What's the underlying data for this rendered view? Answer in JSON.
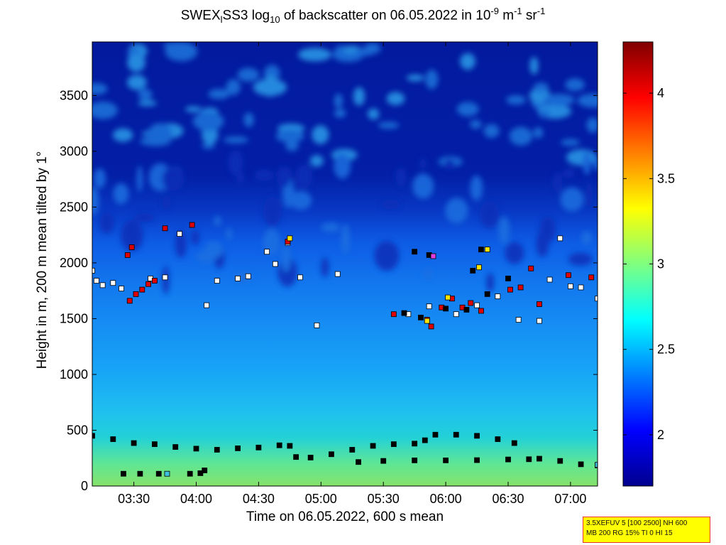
{
  "title": {
    "prefix": "SWEX",
    "sub1": "l",
    "mid1": "SS3 log",
    "sub2": "10",
    "mid2": " of backscatter on 06.05.2022 in 10",
    "sup1": "-9",
    "mid3": " m",
    "sup2": "-1",
    "mid4": " sr",
    "sup3": "-1"
  },
  "info_box": {
    "line1": "3.5XEFUV 5 [100 2500] NH 600",
    "line2": "MB 200 RG 15% TI 0 HI 15"
  },
  "chart_data": {
    "type": "heatmap",
    "xlabel": "Time on 06.05.2022, 600 s mean",
    "ylabel": "Height in m, 200 m mean tilted by 1°",
    "xlim": [
      "03:10",
      "07:13"
    ],
    "ylim": [
      0,
      3980
    ],
    "x_ticks": [
      "03:30",
      "04:00",
      "04:30",
      "05:00",
      "05:30",
      "06:00",
      "06:30",
      "07:00"
    ],
    "y_ticks": [
      0,
      500,
      1000,
      1500,
      2000,
      2500,
      3000,
      3500
    ],
    "colorbar": {
      "colormap": "jet",
      "range": [
        1.7,
        4.3
      ],
      "ticks": [
        "2",
        "2.5",
        "3",
        "3.5",
        "4"
      ]
    },
    "background_structure": {
      "surface_layer_top_m": 450,
      "mixed_layer_top_m": 1900,
      "cloud_patches_above_m": 2500
    },
    "series": [
      {
        "role": "boundary-layer-lower",
        "marker_color": "#000000",
        "points": [
          [
            "03:10",
            450
          ],
          [
            "03:20",
            420
          ],
          [
            "03:30",
            385
          ],
          [
            "03:40",
            375
          ],
          [
            "03:50",
            350
          ],
          [
            "04:00",
            335
          ],
          [
            "04:10",
            325
          ],
          [
            "04:20",
            338
          ],
          [
            "04:30",
            345
          ],
          [
            "04:40",
            365
          ],
          [
            "04:45",
            360
          ],
          [
            "04:48",
            260
          ],
          [
            "04:55",
            255
          ],
          [
            "05:05",
            285
          ],
          [
            "05:15",
            325
          ],
          [
            "05:25",
            360
          ],
          [
            "05:35",
            375
          ],
          [
            "05:45",
            380
          ]
        ]
      },
      {
        "role": "boundary-layer-lower",
        "marker_color": "#000000",
        "points": [
          [
            "05:50",
            410
          ],
          [
            "05:55",
            460
          ],
          [
            "06:05",
            460
          ],
          [
            "06:15",
            450
          ],
          [
            "06:25",
            420
          ],
          [
            "06:33",
            385
          ]
        ]
      },
      {
        "role": "boundary-layer-surface",
        "marker_color": "#000000",
        "points": [
          [
            "05:18",
            215
          ],
          [
            "05:30",
            225
          ],
          [
            "05:45",
            230
          ],
          [
            "06:00",
            230
          ],
          [
            "06:15",
            232
          ],
          [
            "06:30",
            238
          ],
          [
            "06:40",
            240
          ],
          [
            "06:45",
            245
          ],
          [
            "06:55",
            225
          ],
          [
            "07:05",
            195
          ],
          [
            "07:13",
            185
          ]
        ]
      },
      {
        "role": "boundary-layer-surface",
        "marker_color": "#000000",
        "points": [
          [
            "03:25",
            110
          ],
          [
            "03:33",
            110
          ],
          [
            "03:42",
            110
          ],
          [
            "03:57",
            110
          ],
          [
            "04:02",
            115
          ],
          [
            "04:04",
            140
          ]
        ]
      },
      {
        "role": "cloud-base",
        "marker_color": "#ffffff",
        "points": [
          [
            "03:10",
            1930
          ],
          [
            "03:12",
            1840
          ],
          [
            "03:15",
            1800
          ],
          [
            "03:20",
            1820
          ],
          [
            "03:24",
            1770
          ],
          [
            "03:38",
            1860
          ],
          [
            "03:45",
            1870
          ],
          [
            "03:52",
            2260
          ],
          [
            "04:05",
            1620
          ],
          [
            "04:10",
            1840
          ],
          [
            "04:20",
            1860
          ],
          [
            "04:25",
            1880
          ],
          [
            "04:34",
            2100
          ],
          [
            "04:38",
            1990
          ],
          [
            "04:44",
            2180
          ],
          [
            "04:50",
            1870
          ],
          [
            "04:58",
            1440
          ],
          [
            "05:08",
            1900
          ],
          [
            "05:42",
            1540
          ],
          [
            "05:52",
            1610
          ],
          [
            "06:05",
            1540
          ],
          [
            "06:15",
            1620
          ],
          [
            "06:25",
            1700
          ],
          [
            "06:35",
            1490
          ],
          [
            "06:45",
            1480
          ],
          [
            "06:50",
            1850
          ],
          [
            "06:55",
            2220
          ],
          [
            "07:00",
            1790
          ],
          [
            "07:05",
            1780
          ],
          [
            "07:13",
            1680
          ]
        ]
      },
      {
        "role": "cloud-base",
        "marker_color": "#e00000",
        "points": [
          [
            "03:28",
            1660
          ],
          [
            "03:31",
            1720
          ],
          [
            "03:34",
            1760
          ],
          [
            "03:37",
            1810
          ],
          [
            "03:40",
            1840
          ],
          [
            "03:27",
            2070
          ],
          [
            "03:29",
            2140
          ],
          [
            "03:45",
            2310
          ],
          [
            "03:58",
            2340
          ],
          [
            "04:44",
            2190
          ],
          [
            "05:35",
            1540
          ],
          [
            "05:51",
            1490
          ],
          [
            "05:53",
            1430
          ],
          [
            "05:58",
            1600
          ],
          [
            "06:03",
            1680
          ],
          [
            "06:08",
            1600
          ],
          [
            "06:12",
            1640
          ],
          [
            "06:17",
            1570
          ],
          [
            "06:31",
            1760
          ],
          [
            "06:36",
            1780
          ],
          [
            "06:41",
            1950
          ],
          [
            "06:45",
            1630
          ],
          [
            "06:59",
            1890
          ],
          [
            "07:10",
            1870
          ]
        ]
      },
      {
        "role": "cloud-base",
        "marker_color": "#000000",
        "points": [
          [
            "05:40",
            1550
          ],
          [
            "05:48",
            1510
          ],
          [
            "06:00",
            1590
          ],
          [
            "06:10",
            1580
          ],
          [
            "06:20",
            1720
          ],
          [
            "06:30",
            1860
          ],
          [
            "05:45",
            2100
          ],
          [
            "05:52",
            2070
          ],
          [
            "06:17",
            2120
          ],
          [
            "06:13",
            1930
          ]
        ]
      },
      {
        "role": "cloud-base",
        "marker_color": "#ffe400",
        "points": [
          [
            "04:45",
            2220
          ],
          [
            "05:51",
            1480
          ],
          [
            "06:01",
            1690
          ],
          [
            "06:20",
            2120
          ],
          [
            "06:16",
            1960
          ]
        ]
      },
      {
        "role": "cloud-base",
        "marker_color": "#e040e0",
        "points": [
          [
            "05:54",
            2060
          ]
        ]
      },
      {
        "role": "cloud-base",
        "marker_color": "#40c0e0",
        "points": [
          [
            "03:46",
            110
          ],
          [
            "07:13",
            190
          ]
        ]
      }
    ]
  }
}
